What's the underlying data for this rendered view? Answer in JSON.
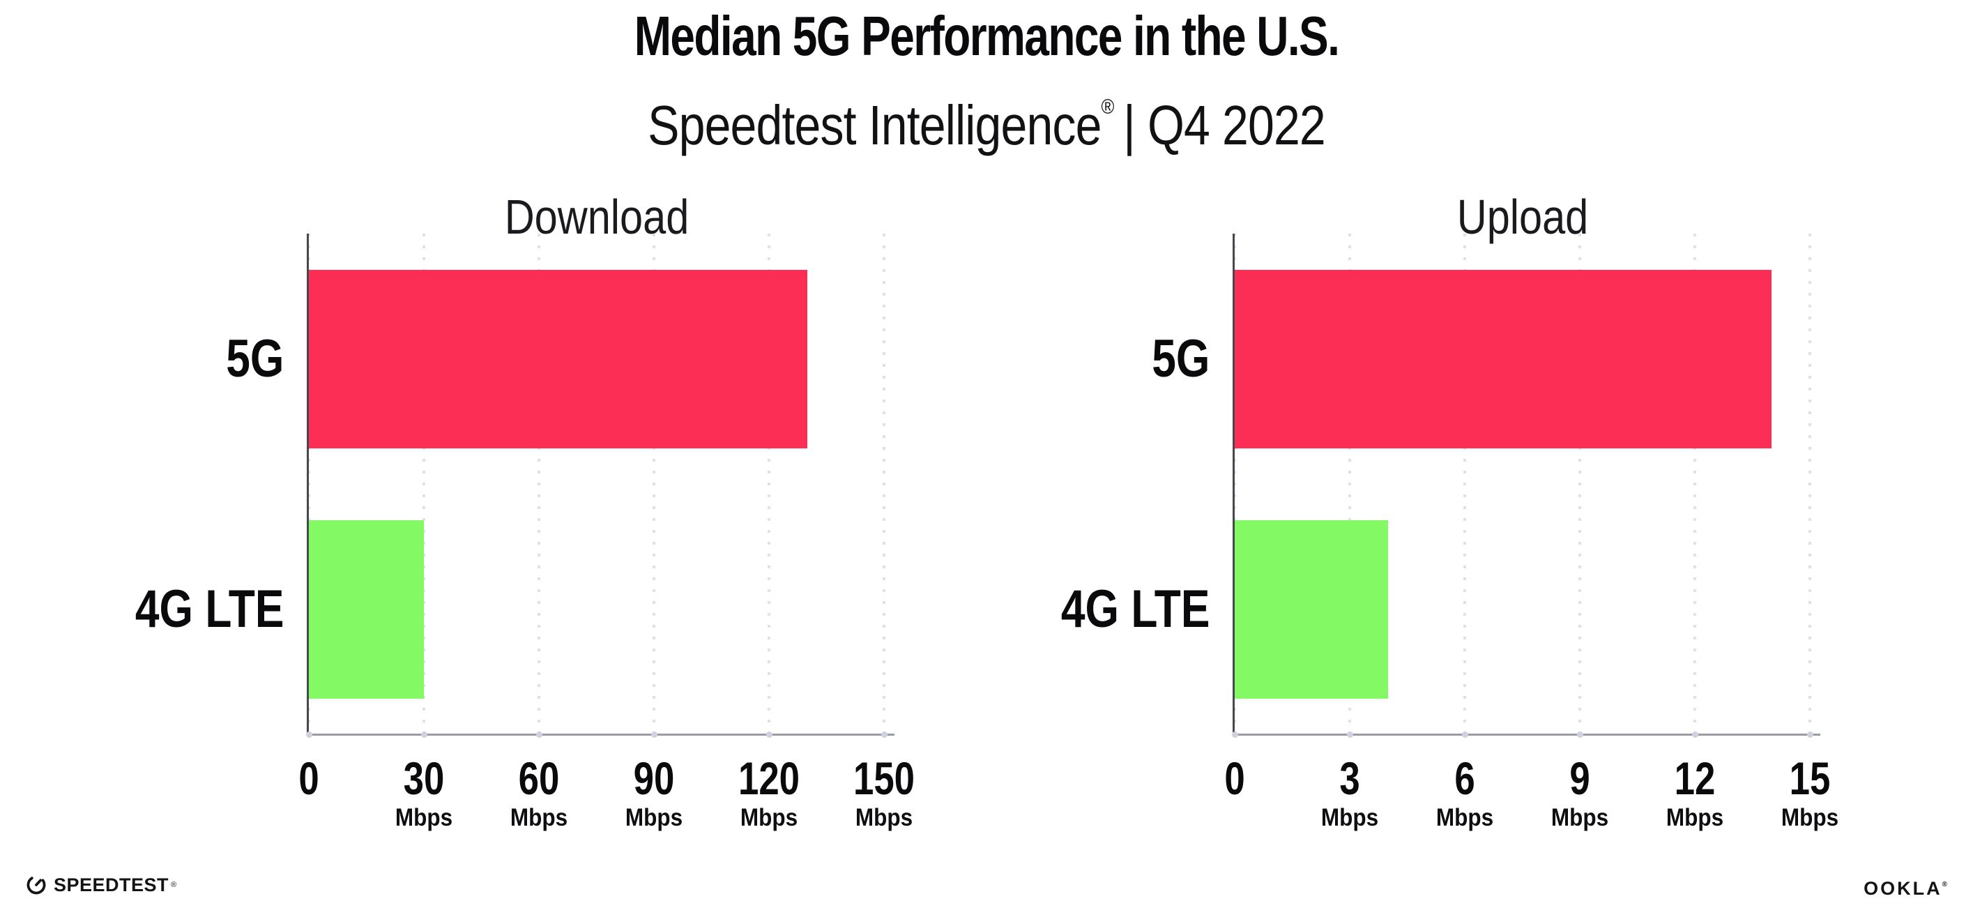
{
  "header": {
    "title": "Median 5G Performance in the U.S.",
    "subtitle_brand": "Speedtest Intelligence",
    "subtitle_reg": "®",
    "subtitle_rest": "| Q4 2022"
  },
  "colors": {
    "bar_5g": "#FC2E55",
    "bar_4g_lte": "#83FA63",
    "axis_vertical": "#47474f",
    "axis_horizontal": "#9b9ba1",
    "gridline_dots": "#dfe0eb",
    "text": "#0a0a0c"
  },
  "chart_data": [
    {
      "type": "bar",
      "orientation": "horizontal",
      "title": "Download",
      "categories": [
        "5G",
        "4G LTE"
      ],
      "values": [
        130,
        30
      ],
      "unit": "Mbps",
      "xlim": [
        0,
        150
      ],
      "xticks": [
        0,
        30,
        60,
        90,
        120,
        150
      ],
      "grid": "vertical-dotted",
      "legend": "none",
      "bar_colors": [
        "#FC2E55",
        "#83FA63"
      ]
    },
    {
      "type": "bar",
      "orientation": "horizontal",
      "title": "Upload",
      "categories": [
        "5G",
        "4G LTE"
      ],
      "values": [
        14,
        4
      ],
      "unit": "Mbps",
      "xlim": [
        0,
        15
      ],
      "xticks": [
        0,
        3,
        6,
        9,
        12,
        15
      ],
      "grid": "vertical-dotted",
      "legend": "none",
      "bar_colors": [
        "#FC2E55",
        "#83FA63"
      ]
    }
  ],
  "footer": {
    "speedtest_text": "SPEEDTEST",
    "speedtest_mark": "®",
    "ookla_text": "OOKLA",
    "ookla_mark": "®"
  }
}
